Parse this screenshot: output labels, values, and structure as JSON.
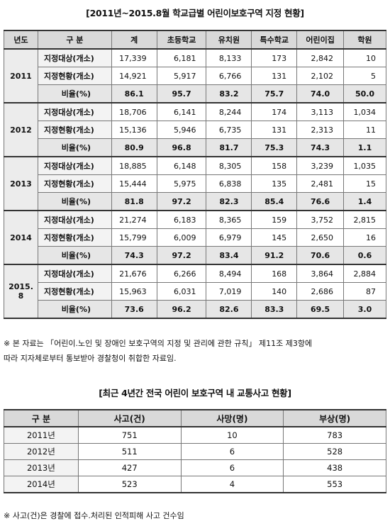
{
  "table1": {
    "title": "[2011년~2015.8월 학교급별 어린이보호구역 지정 현황]",
    "headers": [
      "년도",
      "구  분",
      "계",
      "초등학교",
      "유치원",
      "특수학교",
      "어린이집",
      "학원"
    ],
    "groups": [
      {
        "year": "2011",
        "rows": [
          {
            "cat": "지정대상(개소)",
            "values": [
              "17,339",
              "6,181",
              "8,133",
              "173",
              "2,842",
              "10"
            ]
          },
          {
            "cat": "지정현황(개소)",
            "values": [
              "14,921",
              "5,917",
              "6,766",
              "131",
              "2,102",
              "5"
            ]
          },
          {
            "cat": "비율(%)",
            "values": [
              "86.1",
              "95.7",
              "83.2",
              "75.7",
              "74.0",
              "50.0"
            ]
          }
        ]
      },
      {
        "year": "2012",
        "rows": [
          {
            "cat": "지정대상(개소)",
            "values": [
              "18,706",
              "6,141",
              "8,244",
              "174",
              "3,113",
              "1,034"
            ]
          },
          {
            "cat": "지정현황(개소)",
            "values": [
              "15,136",
              "5,946",
              "6,735",
              "131",
              "2,313",
              "11"
            ]
          },
          {
            "cat": "비율(%)",
            "values": [
              "80.9",
              "96.8",
              "81.7",
              "75.3",
              "74.3",
              "1.1"
            ]
          }
        ]
      },
      {
        "year": "2013",
        "rows": [
          {
            "cat": "지정대상(개소)",
            "values": [
              "18,885",
              "6,148",
              "8,305",
              "158",
              "3,239",
              "1,035"
            ]
          },
          {
            "cat": "지정현황(개소)",
            "values": [
              "15,444",
              "5,975",
              "6,838",
              "135",
              "2,481",
              "15"
            ]
          },
          {
            "cat": "비율(%)",
            "values": [
              "81.8",
              "97.2",
              "82.3",
              "85.4",
              "76.6",
              "1.4"
            ]
          }
        ]
      },
      {
        "year": "2014",
        "rows": [
          {
            "cat": "지정대상(개소)",
            "values": [
              "21,274",
              "6,183",
              "8,365",
              "159",
              "3,752",
              "2,815"
            ]
          },
          {
            "cat": "지정현황(개소)",
            "values": [
              "15,799",
              "6,009",
              "6,979",
              "145",
              "2,650",
              "16"
            ]
          },
          {
            "cat": "비율(%)",
            "values": [
              "74.3",
              "97.2",
              "83.4",
              "91.2",
              "70.6",
              "0.6"
            ]
          }
        ]
      },
      {
        "year": "2015.\n8",
        "rows": [
          {
            "cat": "지정대상(개소)",
            "values": [
              "21,676",
              "6,266",
              "8,494",
              "168",
              "3,864",
              "2,884"
            ]
          },
          {
            "cat": "지정현황(개소)",
            "values": [
              "15,963",
              "6,031",
              "7,019",
              "140",
              "2,686",
              "87"
            ]
          },
          {
            "cat": "비율(%)",
            "values": [
              "73.6",
              "96.2",
              "82.6",
              "83.3",
              "69.5",
              "3.0"
            ]
          }
        ]
      }
    ]
  },
  "note1": {
    "line1": "※ 본 자료는 「어린이.노인 및 장애인 보호구역의 지정 및 관리에 관한 규칙」 제11조 제3항에",
    "line2": "따라 지자체로부터 통보받아 경찰청이 취합한 자료임."
  },
  "table2": {
    "title": "[최근 4년간 전국 어린이 보호구역 내 교통사고 현황]",
    "headers": [
      "구  분",
      "사고(건)",
      "사망(명)",
      "부상(명)"
    ],
    "rows": [
      [
        "2011년",
        "751",
        "10",
        "783"
      ],
      [
        "2012년",
        "511",
        "6",
        "528"
      ],
      [
        "2013년",
        "427",
        "6",
        "438"
      ],
      [
        "2014년",
        "523",
        "4",
        "553"
      ]
    ]
  },
  "note2": "※ 사고(건)은 경찰에 접수.처리된 인적피해 사고 건수임"
}
